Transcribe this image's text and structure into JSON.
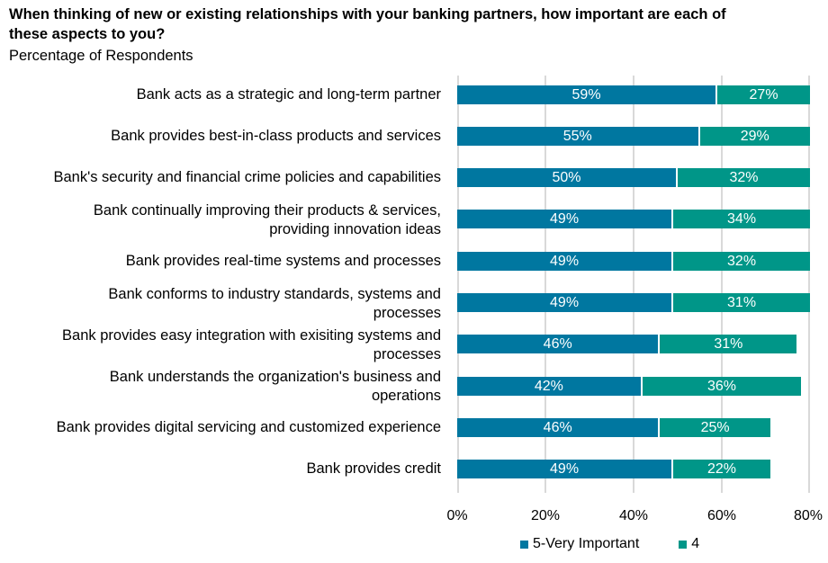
{
  "title": "When thinking of new or existing relationships with your banking partners, how important are each of these aspects to you?",
  "subtitle": "Percentage of Respondents",
  "colors": {
    "series1": "#0077a0",
    "series2": "#009688",
    "grid": "#d9d9d9"
  },
  "chart_data": {
    "type": "bar",
    "orientation": "horizontal",
    "stacked": true,
    "title": "When thinking of new or existing relationships with your banking partners, how important are each of these aspects to you?",
    "subtitle": "Percentage of Respondents",
    "xlabel": "",
    "ylabel": "",
    "xlim": [
      0,
      80
    ],
    "x_ticks": [
      "0%",
      "20%",
      "40%",
      "60%",
      "80%"
    ],
    "grid": true,
    "legend_position": "bottom",
    "categories": [
      "Bank acts as a strategic and long-term partner",
      "Bank provides best-in-class products and services",
      "Bank's security and financial crime policies and capabilities",
      "Bank continually improving their products & services, providing innovation ideas",
      "Bank provides real-time systems and processes",
      "Bank conforms to industry standards, systems and processes",
      "Bank provides easy integration with exisiting systems and processes",
      "Bank understands the organization's business and operations",
      "Bank provides digital servicing and customized experience",
      "Bank provides credit"
    ],
    "series": [
      {
        "name": "5-Very Important",
        "color": "#0077a0",
        "values": [
          59,
          55,
          50,
          49,
          49,
          49,
          46,
          42,
          46,
          49
        ]
      },
      {
        "name": "4",
        "color": "#009688",
        "values": [
          27,
          29,
          32,
          34,
          32,
          31,
          31,
          36,
          25,
          22
        ]
      }
    ]
  },
  "rows": [
    {
      "label_lines": [
        "Bank acts as a strategic and long-term partner"
      ],
      "v1": 59,
      "v2": 27,
      "l1": "59%",
      "l2": "27%"
    },
    {
      "label_lines": [
        "Bank provides best-in-class products and services"
      ],
      "v1": 55,
      "v2": 29,
      "l1": "55%",
      "l2": "29%"
    },
    {
      "label_lines": [
        "Bank's security and financial crime policies and capabilities"
      ],
      "v1": 50,
      "v2": 32,
      "l1": "50%",
      "l2": "32%"
    },
    {
      "label_lines": [
        "Bank continually improving their products & services,",
        "providing innovation ideas"
      ],
      "v1": 49,
      "v2": 34,
      "l1": "49%",
      "l2": "34%"
    },
    {
      "label_lines": [
        "Bank provides real-time systems and processes"
      ],
      "v1": 49,
      "v2": 32,
      "l1": "49%",
      "l2": "32%"
    },
    {
      "label_lines": [
        "Bank conforms to industry standards, systems and",
        "processes"
      ],
      "v1": 49,
      "v2": 31,
      "l1": "49%",
      "l2": "31%"
    },
    {
      "label_lines": [
        "Bank provides easy integration with exisiting systems and",
        "processes"
      ],
      "v1": 46,
      "v2": 31,
      "l1": "46%",
      "l2": "31%"
    },
    {
      "label_lines": [
        "Bank understands the organization's business and",
        "operations"
      ],
      "v1": 42,
      "v2": 36,
      "l1": "42%",
      "l2": "36%"
    },
    {
      "label_lines": [
        "Bank provides digital servicing and customized experience"
      ],
      "v1": 46,
      "v2": 25,
      "l1": "46%",
      "l2": "25%"
    },
    {
      "label_lines": [
        "Bank provides credit"
      ],
      "v1": 49,
      "v2": 22,
      "l1": "49%",
      "l2": "22%"
    }
  ],
  "axis": {
    "ticks": [
      "0%",
      "20%",
      "40%",
      "60%",
      "80%"
    ]
  },
  "legend": [
    {
      "label": "5-Very Important",
      "color": "#0077a0"
    },
    {
      "label": "4",
      "color": "#009688"
    }
  ]
}
